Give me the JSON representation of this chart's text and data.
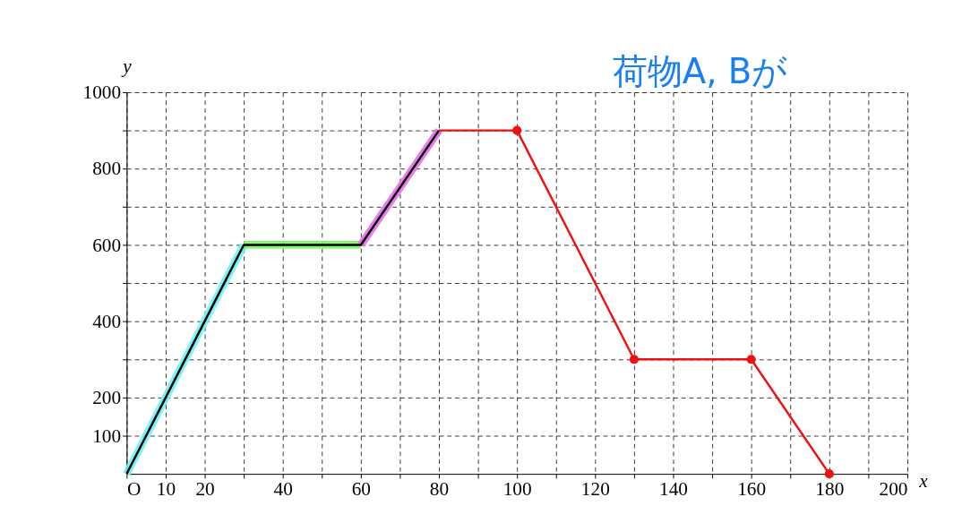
{
  "chart_data": {
    "type": "line",
    "xlabel": "x",
    "ylabel": "y",
    "annotations": [
      {
        "text": "荷物A, Bが"
      }
    ],
    "xlim": [
      0,
      200
    ],
    "ylim": [
      0,
      1000
    ],
    "xticks": [
      {
        "value": 0,
        "label": "O"
      },
      10,
      20,
      {
        "value": 30,
        "label": null
      },
      40,
      {
        "value": 50,
        "label": null
      },
      60,
      {
        "value": 70,
        "label": null
      },
      80,
      {
        "value": 90,
        "label": null
      },
      100,
      {
        "value": 110,
        "label": null
      },
      120,
      {
        "value": 130,
        "label": null
      },
      140,
      {
        "value": 150,
        "label": null
      },
      160,
      {
        "value": 170,
        "label": null
      },
      180,
      {
        "value": 190,
        "label": null
      },
      200
    ],
    "yticks": [
      100,
      200,
      {
        "value": 300,
        "label": null
      },
      400,
      {
        "value": 500,
        "label": null
      },
      600,
      {
        "value": 700,
        "label": null
      },
      800,
      {
        "value": 900,
        "label": null
      },
      1000
    ],
    "grid": true,
    "line_style": "solid",
    "series": [
      {
        "color": "#6ff3f3",
        "x": [
          0,
          30
        ],
        "values": [
          0,
          600
        ]
      },
      {
        "color": "#7def6a",
        "x": [
          30,
          60
        ],
        "values": [
          600,
          600
        ]
      },
      {
        "color": "#e46ee8",
        "x": [
          60,
          80
        ],
        "values": [
          600,
          900
        ]
      },
      {
        "color": "#000000",
        "x": [
          0,
          30,
          60,
          80
        ],
        "values": [
          0,
          600,
          600,
          900
        ]
      },
      {
        "color": "#f01010",
        "x": [
          80,
          100,
          130,
          160,
          180
        ],
        "values": [
          900,
          900,
          300,
          300,
          0
        ]
      },
      {
        "type": "scatter",
        "color": "#f01010",
        "marker": "circle",
        "x": [
          100,
          130,
          160,
          180
        ],
        "values": [
          900,
          300,
          300,
          0
        ]
      }
    ]
  }
}
